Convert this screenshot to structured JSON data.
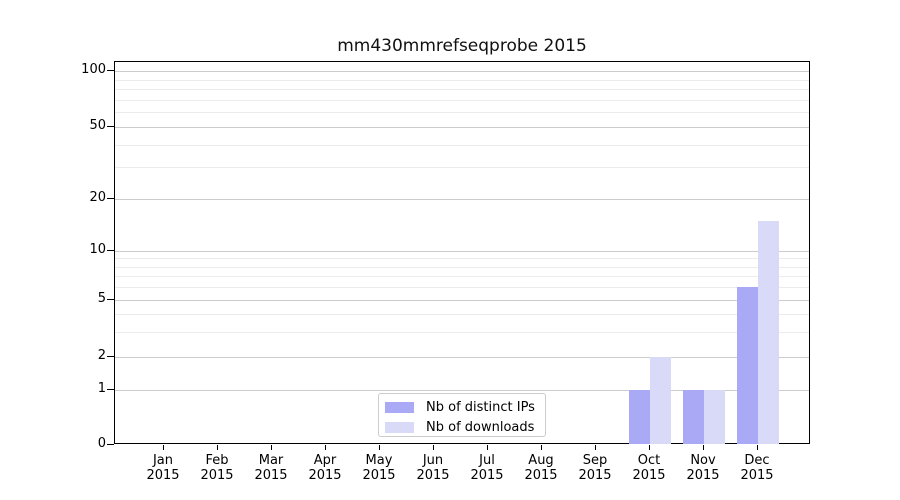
{
  "chart_data": {
    "type": "bar",
    "title": "mm430mmrefseqprobe 2015",
    "categories": [
      "Jan",
      "Feb",
      "Mar",
      "Apr",
      "May",
      "Jun",
      "Jul",
      "Aug",
      "Sep",
      "Oct",
      "Nov",
      "Dec"
    ],
    "category_year": "2015",
    "series": [
      {
        "name": "Nb of distinct IPs",
        "color": "#a9a9f5",
        "values": [
          0,
          0,
          0,
          0,
          0,
          0,
          0,
          0,
          0,
          1,
          1,
          6
        ]
      },
      {
        "name": "Nb of downloads",
        "color": "#d9d9f8",
        "values": [
          0,
          0,
          0,
          0,
          0,
          0,
          0,
          0,
          0,
          2,
          1,
          15
        ]
      }
    ],
    "yaxis": {
      "scale": "log-like (compressed below 1)",
      "ticks": [
        0,
        1,
        2,
        5,
        10,
        20,
        50,
        100
      ],
      "minor_gridlines": [
        3,
        4,
        6,
        7,
        8,
        9,
        30,
        40,
        60,
        70,
        80,
        90
      ],
      "range": [
        0,
        100
      ]
    },
    "xaxis": {
      "label_lines": 2
    },
    "grid": {
      "major_color": "#cccccc",
      "minor_color": "#ececec",
      "on": true
    },
    "legend": {
      "position": "inside-bottom-center-left",
      "border_color": "#cccccc",
      "background": "#ffffff"
    },
    "colors": {
      "background": "#ffffff",
      "axis": "#000000",
      "text": "#000000"
    }
  }
}
